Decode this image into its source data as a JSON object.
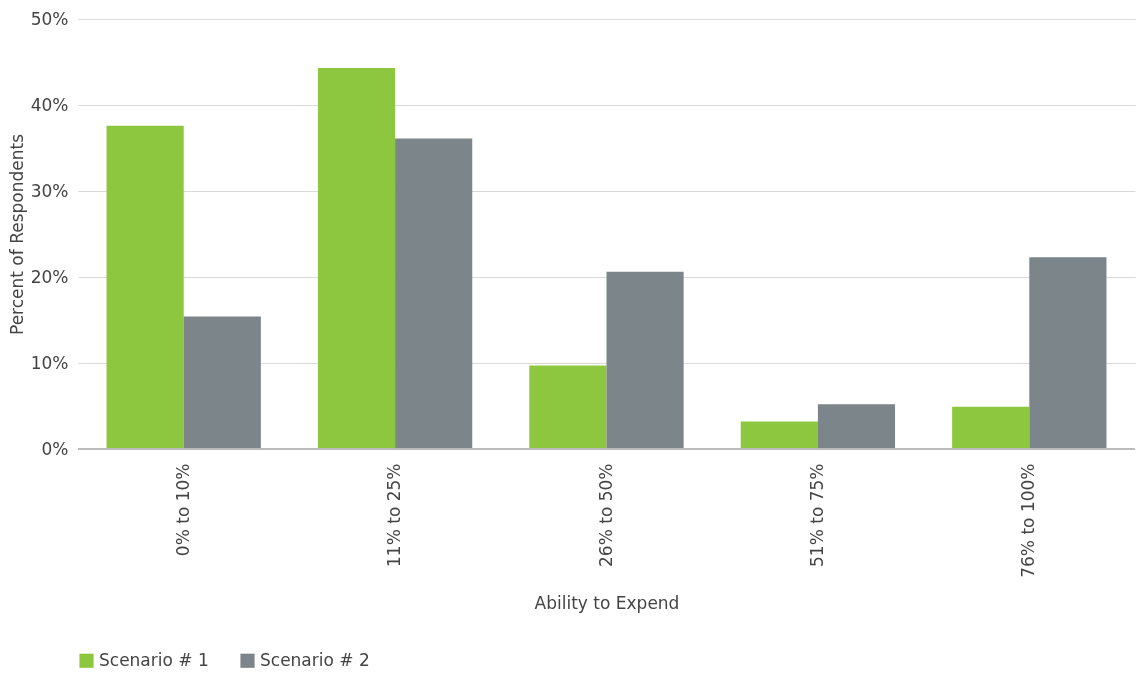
{
  "chart_data": {
    "type": "bar",
    "xlabel": "Ability to Expend",
    "ylabel": "Percent of Respondents",
    "categories": [
      "0% to 10%",
      "11% to 25%",
      "26% to 50%",
      "51% to 75%",
      "76% to 100%"
    ],
    "series": [
      {
        "name": "Scenario # 1",
        "color": "#8dc63f",
        "values": [
          37.6,
          44.3,
          9.7,
          3.2,
          4.9
        ]
      },
      {
        "name": "Scenario # 2",
        "color": "#7b858a",
        "values": [
          15.4,
          36.1,
          20.6,
          5.2,
          22.3
        ]
      }
    ],
    "ylim": [
      0,
      50
    ],
    "yticks": [
      {
        "value": 0,
        "label": "0%"
      },
      {
        "value": 10,
        "label": "10%"
      },
      {
        "value": 20,
        "label": "20%"
      },
      {
        "value": 30,
        "label": "30%"
      },
      {
        "value": 40,
        "label": "40%"
      },
      {
        "value": 50,
        "label": "50%"
      }
    ],
    "grid": "y",
    "legend": "bottom"
  }
}
